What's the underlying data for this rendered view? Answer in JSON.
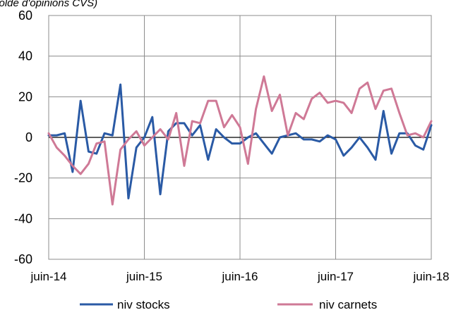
{
  "chart_data": {
    "type": "line",
    "subtitle": "(solde d'opinions CVS)",
    "ylim": [
      -60,
      60
    ],
    "y_ticks": [
      "60",
      "40",
      "20",
      "0",
      "-20",
      "-40",
      "-60"
    ],
    "y_tick_values": [
      60,
      40,
      20,
      0,
      -20,
      -40,
      -60
    ],
    "x_ticks": [
      "juin-14",
      "juin-15",
      "juin-16",
      "juin-17",
      "juin-18"
    ],
    "grid": true,
    "legend_position": "bottom",
    "colors": {
      "niv_stocks": "#2a5aa5",
      "niv_carnets": "#cf7996",
      "grid": "#8c8c8c",
      "zero_line": "#000000"
    },
    "series": [
      {
        "name": "niv stocks",
        "values": [
          1,
          1,
          2,
          -17,
          18,
          -7,
          -8,
          2,
          1,
          26,
          -30,
          -5,
          0,
          10,
          -28,
          3,
          7,
          7,
          1,
          6,
          -11,
          4,
          0,
          -3,
          -3,
          0,
          2,
          -3,
          -8,
          0,
          1,
          2,
          -1,
          -1,
          -2,
          1,
          -1,
          -9,
          -5,
          0,
          -5,
          -11,
          13,
          -8,
          2,
          2,
          -4,
          -6,
          6
        ]
      },
      {
        "name": "niv carnets",
        "values": [
          2,
          -5,
          -9,
          -14,
          -18,
          -13,
          -3,
          -2,
          -33,
          -6,
          -1,
          3,
          -4,
          0,
          4,
          -1,
          12,
          -14,
          8,
          7,
          18,
          18,
          5,
          11,
          5,
          -13,
          14,
          30,
          13,
          21,
          1,
          12,
          9,
          19,
          22,
          17,
          18,
          17,
          12,
          24,
          27,
          14,
          23,
          24,
          12,
          1,
          2,
          0,
          8
        ]
      }
    ]
  }
}
